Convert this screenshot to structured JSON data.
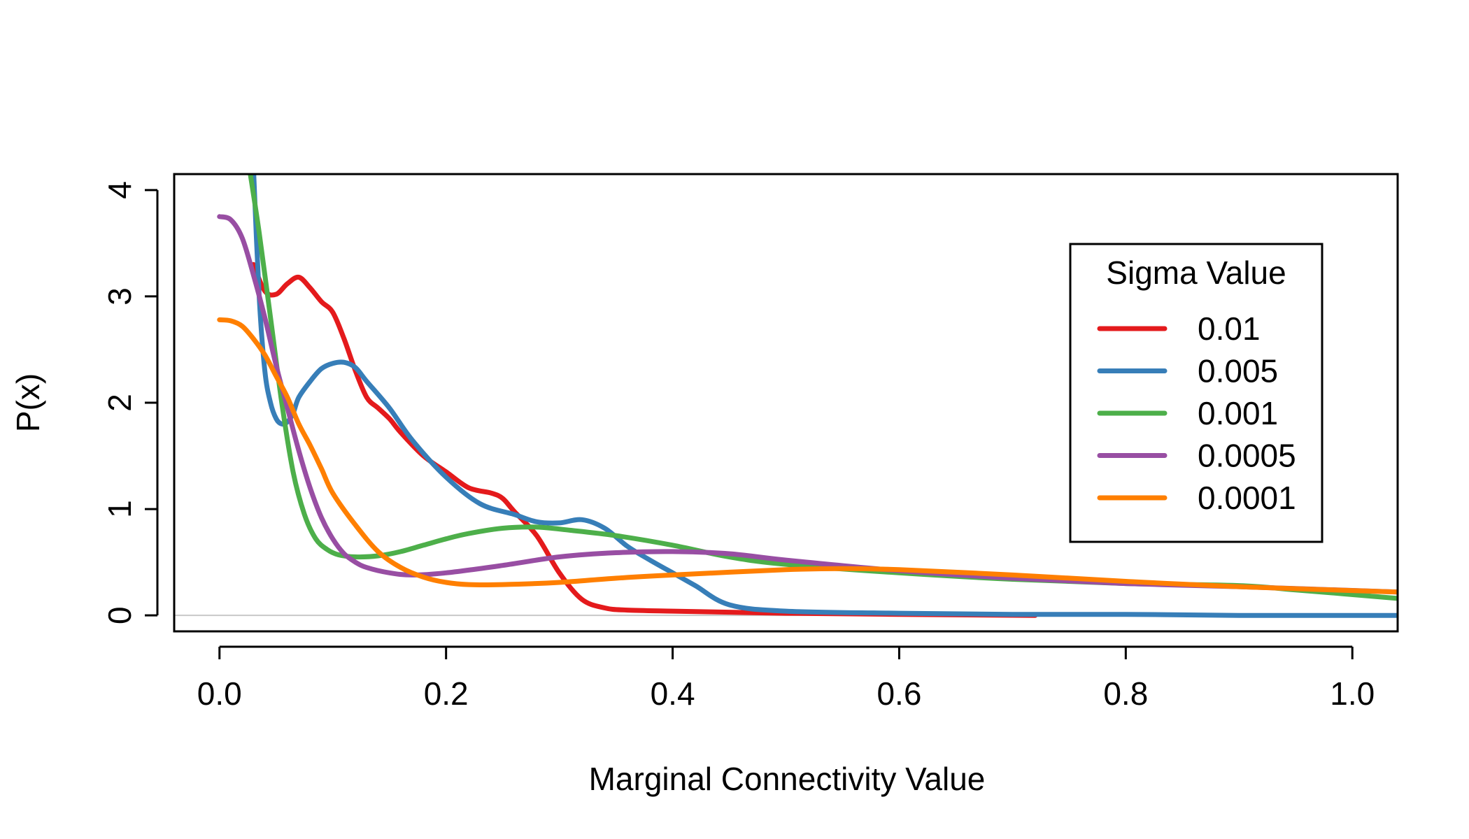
{
  "chart_data": {
    "type": "line",
    "title": "",
    "xlabel": "Marginal Connectivity Value",
    "ylabel": "P(x)",
    "xlim": [
      -0.04,
      1.04
    ],
    "ylim": [
      -0.15,
      4.15
    ],
    "xticks": [
      0.0,
      0.2,
      0.4,
      0.6,
      0.8,
      1.0
    ],
    "xtick_labels": [
      "0.0",
      "0.2",
      "0.4",
      "0.6",
      "0.8",
      "1.0"
    ],
    "yticks": [
      0,
      1,
      2,
      3,
      4
    ],
    "ytick_labels": [
      "0",
      "1",
      "2",
      "3",
      "4"
    ],
    "baseline": 0,
    "grid": false,
    "legend": {
      "title": "Sigma Value",
      "position": "right",
      "entries": [
        "0.01",
        "0.005",
        "0.001",
        "0.0005",
        "0.0001"
      ]
    },
    "series": [
      {
        "name": "0.01",
        "color": "#e41a1c",
        "x": [
          0.03,
          0.04,
          0.05,
          0.06,
          0.07,
          0.08,
          0.09,
          0.1,
          0.11,
          0.12,
          0.13,
          0.14,
          0.15,
          0.16,
          0.18,
          0.2,
          0.22,
          0.24,
          0.25,
          0.26,
          0.28,
          0.3,
          0.32,
          0.34,
          0.36,
          0.4,
          0.45,
          0.5,
          0.6,
          0.72
        ],
        "y": [
          3.3,
          3.05,
          3.02,
          3.12,
          3.18,
          3.08,
          2.95,
          2.85,
          2.6,
          2.3,
          2.05,
          1.95,
          1.85,
          1.72,
          1.5,
          1.35,
          1.2,
          1.15,
          1.1,
          0.98,
          0.75,
          0.4,
          0.15,
          0.07,
          0.05,
          0.04,
          0.03,
          0.02,
          0.01,
          0.0
        ]
      },
      {
        "name": "0.005",
        "color": "#377eb8",
        "x": [
          0.03,
          0.035,
          0.04,
          0.045,
          0.05,
          0.055,
          0.06,
          0.065,
          0.07,
          0.08,
          0.09,
          0.1,
          0.11,
          0.12,
          0.13,
          0.15,
          0.17,
          0.2,
          0.23,
          0.26,
          0.28,
          0.3,
          0.32,
          0.34,
          0.36,
          0.38,
          0.4,
          0.42,
          0.45,
          0.5,
          0.6,
          0.7,
          0.8,
          0.9,
          1.04
        ],
        "y": [
          4.2,
          3.0,
          2.3,
          2.0,
          1.85,
          1.8,
          1.82,
          1.9,
          2.05,
          2.2,
          2.32,
          2.37,
          2.38,
          2.33,
          2.2,
          1.95,
          1.65,
          1.3,
          1.05,
          0.95,
          0.88,
          0.87,
          0.9,
          0.82,
          0.65,
          0.52,
          0.4,
          0.28,
          0.1,
          0.04,
          0.02,
          0.01,
          0.01,
          0.0,
          0.0
        ]
      },
      {
        "name": "0.001",
        "color": "#4daf4a",
        "x": [
          0.025,
          0.035,
          0.045,
          0.055,
          0.065,
          0.075,
          0.085,
          0.095,
          0.105,
          0.12,
          0.14,
          0.16,
          0.18,
          0.2,
          0.22,
          0.25,
          0.28,
          0.31,
          0.35,
          0.4,
          0.45,
          0.5,
          0.6,
          0.7,
          0.8,
          0.9,
          0.95,
          1.04
        ],
        "y": [
          4.3,
          3.6,
          2.8,
          2.0,
          1.35,
          0.95,
          0.72,
          0.62,
          0.57,
          0.55,
          0.56,
          0.6,
          0.66,
          0.72,
          0.77,
          0.82,
          0.83,
          0.8,
          0.75,
          0.66,
          0.55,
          0.48,
          0.4,
          0.34,
          0.3,
          0.28,
          0.24,
          0.16
        ]
      },
      {
        "name": "0.0005",
        "color": "#984ea3",
        "x": [
          0.0,
          0.01,
          0.02,
          0.03,
          0.04,
          0.05,
          0.06,
          0.07,
          0.08,
          0.09,
          0.1,
          0.11,
          0.12,
          0.13,
          0.15,
          0.17,
          0.2,
          0.25,
          0.3,
          0.35,
          0.4,
          0.45,
          0.5,
          0.6,
          0.7,
          0.8,
          0.9,
          1.04
        ],
        "y": [
          3.75,
          3.72,
          3.55,
          3.2,
          2.8,
          2.35,
          1.95,
          1.55,
          1.2,
          0.92,
          0.72,
          0.58,
          0.5,
          0.45,
          0.4,
          0.38,
          0.4,
          0.47,
          0.55,
          0.59,
          0.6,
          0.58,
          0.52,
          0.42,
          0.35,
          0.3,
          0.27,
          0.22
        ]
      },
      {
        "name": "0.0001",
        "color": "#ff7f00",
        "x": [
          0.0,
          0.01,
          0.02,
          0.03,
          0.04,
          0.05,
          0.06,
          0.07,
          0.08,
          0.09,
          0.1,
          0.12,
          0.14,
          0.16,
          0.18,
          0.2,
          0.22,
          0.25,
          0.3,
          0.35,
          0.4,
          0.5,
          0.55,
          0.6,
          0.7,
          0.8,
          0.9,
          1.04
        ],
        "y": [
          2.78,
          2.77,
          2.72,
          2.6,
          2.45,
          2.25,
          2.05,
          1.8,
          1.6,
          1.38,
          1.15,
          0.85,
          0.6,
          0.45,
          0.36,
          0.31,
          0.29,
          0.29,
          0.31,
          0.35,
          0.38,
          0.43,
          0.44,
          0.43,
          0.38,
          0.32,
          0.27,
          0.22
        ]
      }
    ]
  }
}
